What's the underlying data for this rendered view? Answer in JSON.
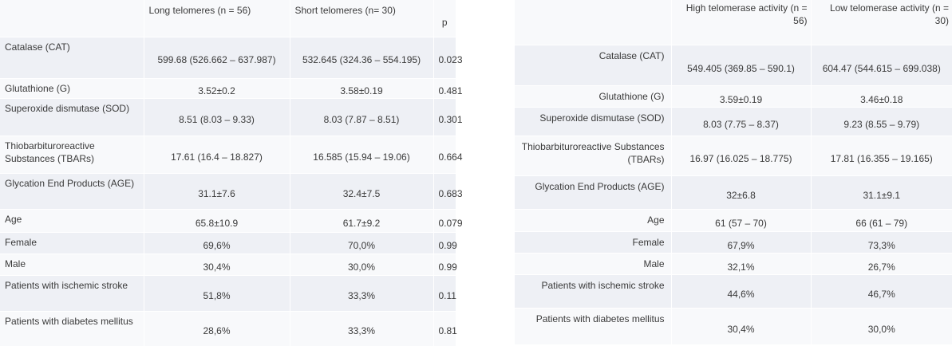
{
  "table_left": {
    "headers": [
      "",
      "Long telomeres (n = 56)",
      "Short telomeres (n= 30)",
      "p"
    ],
    "rows": [
      {
        "label": "Catalase (CAT)",
        "col1": "599.68 (526.662 – 637.987)",
        "col2": "532.645 (324.36 – 554.195)",
        "p": "0.023"
      },
      {
        "label": "Glutathione (G)",
        "col1": "3.52±0.2",
        "col2": "3.58±0.19",
        "p": "0.481"
      },
      {
        "label": "Superoxide dismutase (SOD)",
        "col1": "8.51 (8.03 – 9.33)",
        "col2": "8.03 (7.87 – 8.51)",
        "p": "0.301"
      },
      {
        "label": "Thiobarbituroreactive Substances (TBARs)",
        "col1": "17.61 (16.4 – 18.827)",
        "col2": "16.585 (15.94 – 19.06)",
        "p": "0.664"
      },
      {
        "label": "Glycation End Products (AGE)",
        "col1": "31.1±7.6",
        "col2": "32.4±7.5",
        "p": "0.683"
      },
      {
        "label": "Age",
        "col1": "65.8±10.9",
        "col2": "61.7±9.2",
        "p": "0.079"
      },
      {
        "label": "Female",
        "col1": "69,6%",
        "col2": "70,0%",
        "p": "0.99"
      },
      {
        "label": "Male",
        "col1": "30,4%",
        "col2": "30,0%",
        "p": "0.99"
      },
      {
        "label": "Patients with ischemic stroke",
        "col1": "51,8%",
        "col2": "33,3%",
        "p": "0.11"
      },
      {
        "label": "Patients with diabetes mellitus",
        "col1": "28,6%",
        "col2": "33,3%",
        "p": "0.81"
      }
    ]
  },
  "table_right": {
    "headers": [
      "",
      "High telomerase activity (n = 56)",
      "Low telomerase activity (n = 30)"
    ],
    "rows": [
      {
        "label": "Catalase (CAT)",
        "col1": "549.405 (369.85 – 590.1)",
        "col2": "604.47 (544.615 – 699.038)"
      },
      {
        "label": "Glutathione (G)",
        "col1": "3.59±0.19",
        "col2": "3.46±0.18"
      },
      {
        "label": "Superoxide dismutase (SOD)",
        "col1": "8.03 (7.75 – 8.37)",
        "col2": "9.23 (8.55 – 9.79)"
      },
      {
        "label": "Thiobarbituroreactive Substances (TBARs)",
        "col1": "16.97 (16.025 – 18.775)",
        "col2": "17.81 (16.355 – 19.165)"
      },
      {
        "label": "Glycation End Products (AGE)",
        "col1": "32±6.8",
        "col2": "31.1±9.1"
      },
      {
        "label": "Age",
        "col1": "61 (57 – 70)",
        "col2": "66 (61 – 79)"
      },
      {
        "label": "Female",
        "col1": "67,9%",
        "col2": "73,3%"
      },
      {
        "label": "Male",
        "col1": "32,1%",
        "col2": "26,7%"
      },
      {
        "label": "Patients with ischemic stroke",
        "col1": "44,6%",
        "col2": "46,7%"
      },
      {
        "label": "Patients with diabetes mellitus",
        "col1": "30,4%",
        "col2": "30,0%"
      }
    ]
  }
}
